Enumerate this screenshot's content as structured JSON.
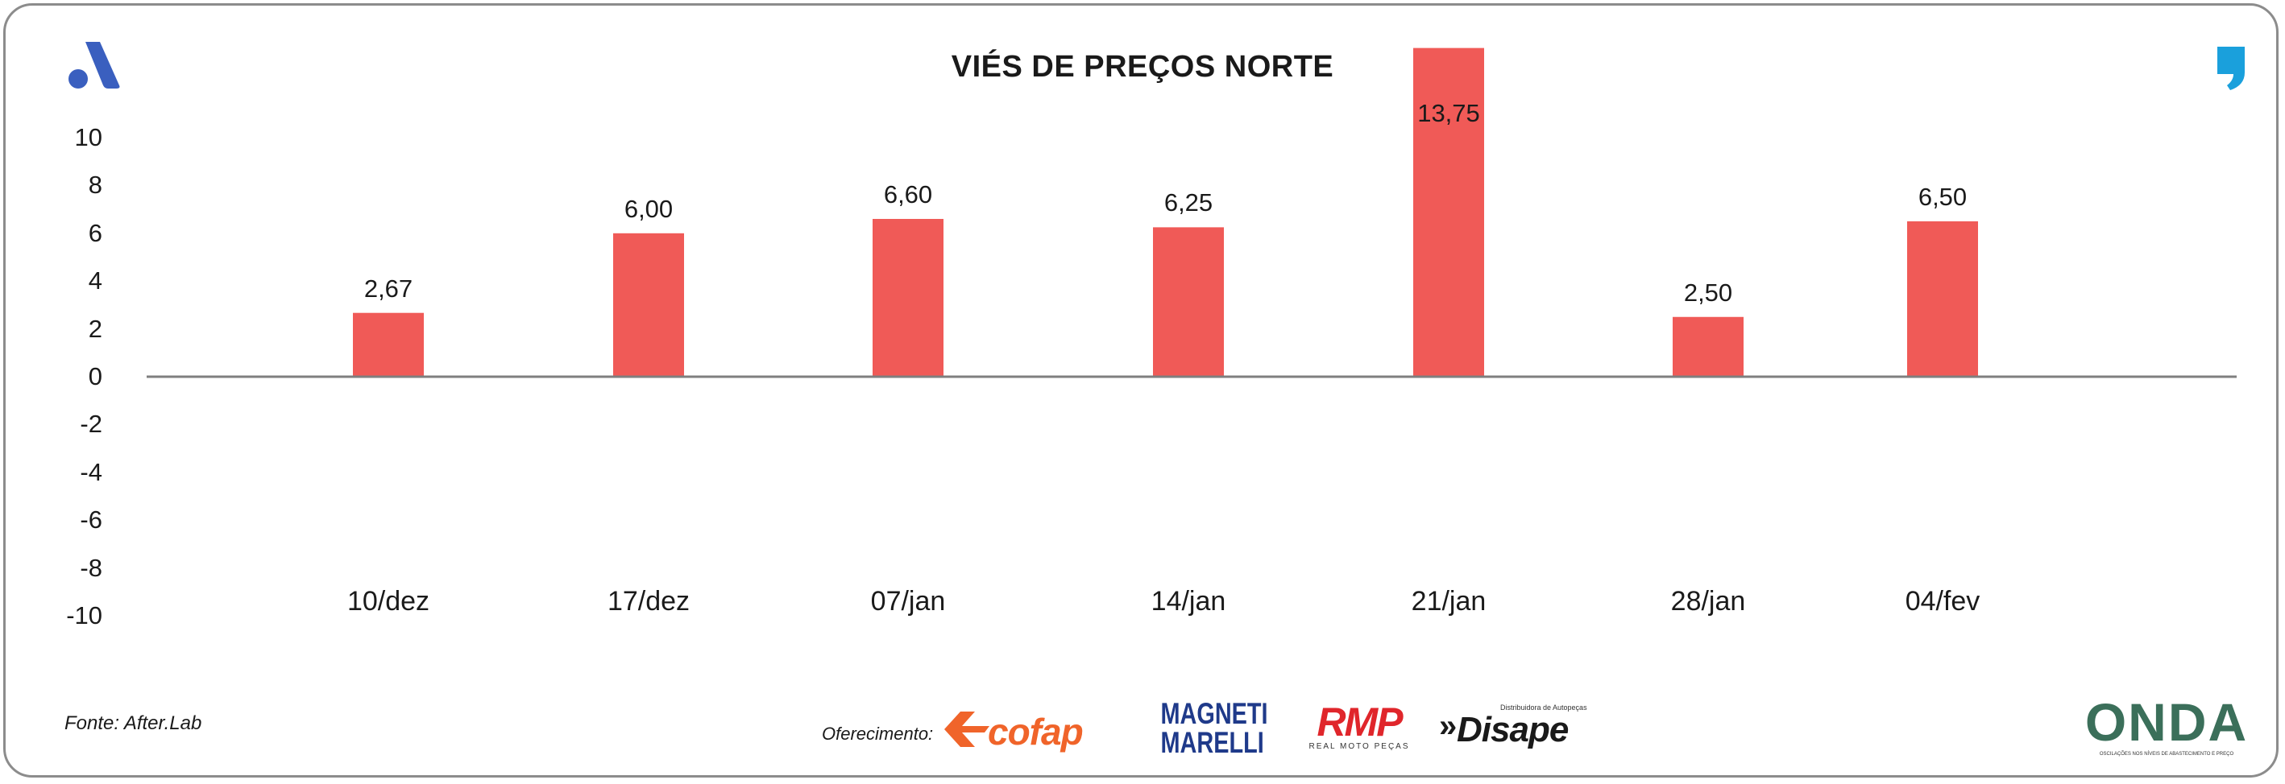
{
  "source": "Fonte: After.Lab",
  "offer_label": "Oferecimento:",
  "sponsors": {
    "cofap": "cofap",
    "magneti_line1": "MAGNETI",
    "magneti_line2": "MARELLI",
    "rmp": "RMP",
    "rmp_sub": "REAL MOTO PEÇAS",
    "disape": "Disape",
    "disape_sub": "Distribuidora de Autopeças",
    "onda": "ONDA",
    "onda_sub": "OSCILAÇÕES NOS NÍVEIS DE ABASTECIMENTO E PREÇO"
  },
  "colors": {
    "bar": "#f05a57",
    "axis": "#7f7f7f",
    "brand_blue": "#3a5fbf",
    "quote_cyan": "#1aa0dc"
  },
  "chart_data": {
    "type": "bar",
    "title": "VIÉS DE PREÇOS NORTE",
    "categories": [
      "10/dez",
      "17/dez",
      "07/jan",
      "14/jan",
      "21/jan",
      "28/jan",
      "04/fev"
    ],
    "values": [
      2.67,
      6.0,
      6.6,
      6.25,
      13.75,
      2.5,
      6.5
    ],
    "value_labels": [
      "2,67",
      "6,00",
      "6,60",
      "6,25",
      "13,75",
      "2,50",
      "6,50"
    ],
    "yticks": [
      "10",
      "8",
      "6",
      "4",
      "2",
      "0",
      "-2",
      "-4",
      "-6",
      "-8",
      "-10"
    ],
    "ylim": [
      -10,
      10
    ],
    "xlabel": "",
    "ylabel": "",
    "grid": false,
    "legend": "none"
  }
}
